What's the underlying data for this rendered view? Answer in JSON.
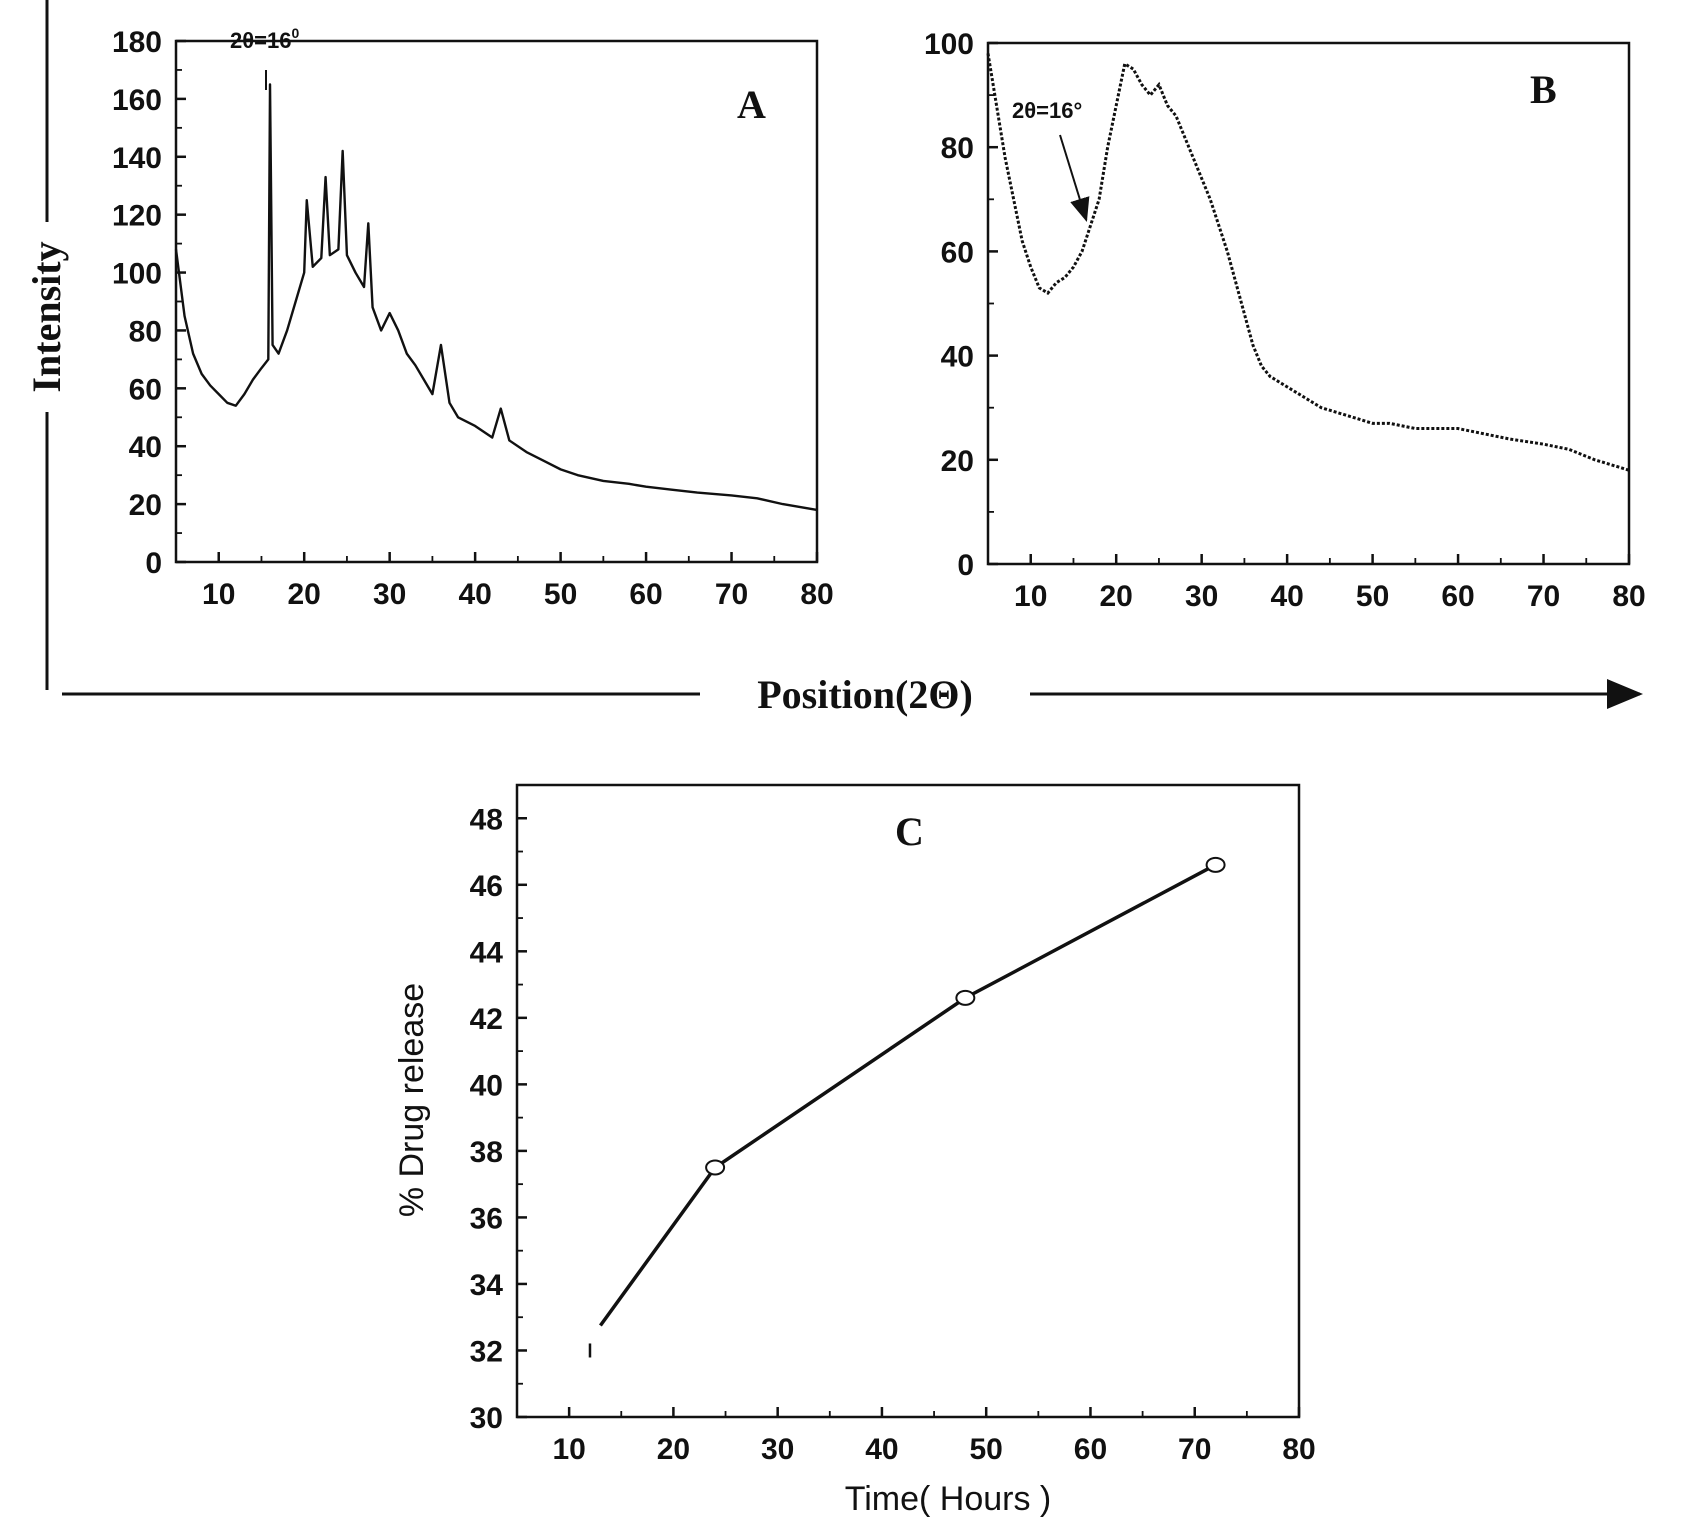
{
  "global_labels": {
    "y_title": "Intensity",
    "x_title": "Position(2Θ)"
  },
  "chart_data": [
    {
      "panel": "A",
      "type": "line",
      "xlim": [
        5,
        80
      ],
      "ylim": [
        0,
        180
      ],
      "xticks": [
        10,
        20,
        30,
        40,
        50,
        60,
        70,
        80
      ],
      "yticks": [
        0,
        20,
        40,
        60,
        80,
        100,
        120,
        140,
        160,
        180
      ],
      "annotation": "2θ=16",
      "annotation_sup": "0",
      "series": [
        {
          "x": [
            5,
            6,
            7,
            8,
            9,
            10,
            11,
            12,
            13,
            14,
            15,
            15.8,
            16,
            16.3,
            17,
            18,
            19,
            20,
            20.3,
            21,
            22,
            22.5,
            23,
            24,
            24.5,
            25,
            26,
            27,
            27.5,
            28,
            29,
            30,
            31,
            32,
            33,
            34,
            35,
            36,
            37,
            38,
            40,
            42,
            43,
            44,
            46,
            48,
            50,
            52,
            55,
            58,
            60,
            63,
            66,
            70,
            73,
            76,
            80
          ],
          "y": [
            108,
            85,
            72,
            65,
            61,
            58,
            55,
            54,
            58,
            63,
            67,
            70,
            165,
            75,
            72,
            80,
            90,
            100,
            125,
            102,
            105,
            133,
            106,
            108,
            142,
            106,
            100,
            95,
            117,
            88,
            80,
            86,
            80,
            72,
            68,
            63,
            58,
            75,
            55,
            50,
            47,
            43,
            53,
            42,
            38,
            35,
            32,
            30,
            28,
            27,
            26,
            25,
            24,
            23,
            22,
            20,
            18
          ]
        }
      ]
    },
    {
      "panel": "B",
      "type": "line",
      "xlim": [
        5,
        80
      ],
      "ylim": [
        0,
        100
      ],
      "xticks": [
        10,
        20,
        30,
        40,
        50,
        60,
        70,
        80
      ],
      "yticks": [
        0,
        20,
        40,
        60,
        80,
        100
      ],
      "annotation": "2θ=16°",
      "annotation_target": [
        16.5,
        66
      ],
      "series": [
        {
          "x": [
            5,
            6,
            7,
            8,
            9,
            10,
            11,
            12,
            13,
            14,
            15,
            16,
            17,
            18,
            19,
            20,
            21,
            22,
            23,
            24,
            25,
            26,
            27,
            28,
            29,
            30,
            31,
            32,
            33,
            34,
            35,
            36,
            37,
            38,
            40,
            42,
            44,
            46,
            48,
            50,
            52,
            55,
            58,
            60,
            63,
            66,
            70,
            73,
            76,
            80
          ],
          "y": [
            98,
            88,
            78,
            70,
            62,
            57,
            53,
            52,
            54,
            55,
            57,
            60,
            65,
            70,
            80,
            88,
            96,
            95,
            92,
            90,
            92,
            88,
            86,
            82,
            78,
            74,
            70,
            65,
            60,
            54,
            48,
            42,
            38,
            36,
            34,
            32,
            30,
            29,
            28,
            27,
            27,
            26,
            26,
            26,
            25,
            24,
            23,
            22,
            20,
            18
          ]
        }
      ]
    },
    {
      "panel": "C",
      "type": "line",
      "xlabel": "Time( Hours )",
      "ylabel": "% Drug release",
      "xlim": [
        5,
        80
      ],
      "ylim": [
        30,
        49
      ],
      "xticks": [
        10,
        20,
        30,
        40,
        50,
        60,
        70,
        80
      ],
      "yticks": [
        30,
        32,
        34,
        36,
        38,
        40,
        42,
        44,
        46,
        48
      ],
      "series": [
        {
          "x": [
            12,
            24,
            48,
            72
          ],
          "y": [
            32.0,
            37.5,
            42.6,
            46.6
          ]
        }
      ]
    }
  ]
}
